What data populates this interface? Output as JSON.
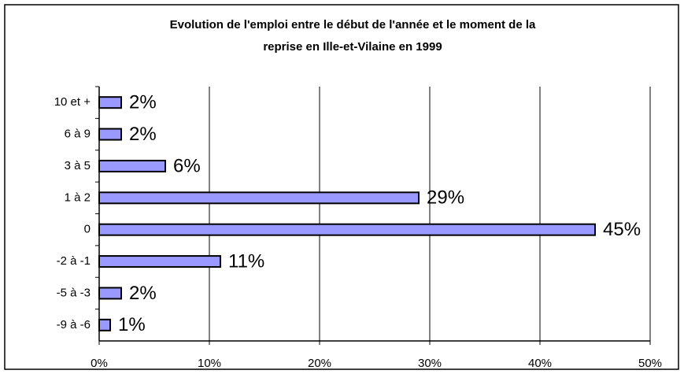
{
  "chart_data": {
    "type": "bar",
    "orientation": "horizontal",
    "title": [
      "Evolution de l'emploi entre le début de l'année et le moment de la",
      "reprise en Ille-et-Vilaine en 1999"
    ],
    "categories": [
      "10 et +",
      "6 à 9",
      "3 à 5",
      "1 à 2",
      "0",
      "-2 à -1",
      "-5 à -3",
      "-9 à -6"
    ],
    "values": [
      2,
      2,
      6,
      29,
      45,
      11,
      2,
      1
    ],
    "value_labels": [
      "2%",
      "2%",
      "6%",
      "29%",
      "45%",
      "11%",
      "2%",
      "1%"
    ],
    "color": "#9999ff",
    "xlim": [
      0,
      50
    ],
    "xticks": [
      {
        "value": 0,
        "label": "0%"
      },
      {
        "value": 10,
        "label": "10%"
      },
      {
        "value": 20,
        "label": "20%"
      },
      {
        "value": 30,
        "label": "30%"
      },
      {
        "value": 40,
        "label": "40%"
      },
      {
        "value": 50,
        "label": "50%"
      }
    ],
    "grid": true
  }
}
